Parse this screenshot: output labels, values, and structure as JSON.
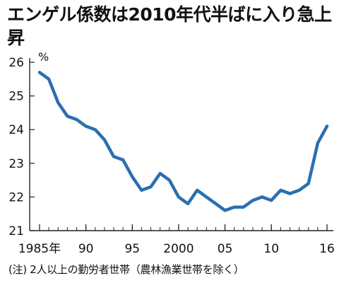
{
  "title": "エンゲル係数は2010年代半ばに入り急上昇",
  "note": "(注) 2人以上の勤労者世帯（農林漁業世帯を除く）",
  "chart_data": {
    "type": "line",
    "title": "エンゲル係数は2010年代半ばに入り急上昇",
    "ylabel": "%",
    "xlabel": "",
    "ylim": [
      21,
      26
    ],
    "xlim": [
      1985,
      2016
    ],
    "grid": false,
    "y_ticks": [
      "21",
      "22",
      "23",
      "24",
      "25",
      "26"
    ],
    "x_ticks": [
      {
        "x": 1985,
        "label": "1985年"
      },
      {
        "x": 1990,
        "label": "90"
      },
      {
        "x": 1995,
        "label": "95"
      },
      {
        "x": 2000,
        "label": "2000"
      },
      {
        "x": 2005,
        "label": "05"
      },
      {
        "x": 2010,
        "label": "10"
      },
      {
        "x": 2016,
        "label": "16"
      }
    ],
    "series": [
      {
        "color": "#2a6fb0",
        "x": [
          1985,
          1986,
          1987,
          1988,
          1989,
          1990,
          1991,
          1992,
          1993,
          1994,
          1995,
          1996,
          1997,
          1998,
          1999,
          2000,
          2001,
          2002,
          2003,
          2004,
          2005,
          2006,
          2007,
          2008,
          2009,
          2010,
          2011,
          2012,
          2013,
          2014,
          2015,
          2016
        ],
        "values": [
          25.7,
          25.5,
          24.8,
          24.4,
          24.3,
          24.1,
          24.0,
          23.7,
          23.2,
          23.1,
          22.6,
          22.2,
          22.3,
          22.7,
          22.5,
          22.0,
          21.8,
          22.2,
          22.0,
          21.8,
          21.6,
          21.7,
          21.7,
          21.9,
          22.0,
          21.9,
          22.2,
          22.1,
          22.2,
          22.4,
          23.6,
          24.1
        ]
      }
    ]
  }
}
